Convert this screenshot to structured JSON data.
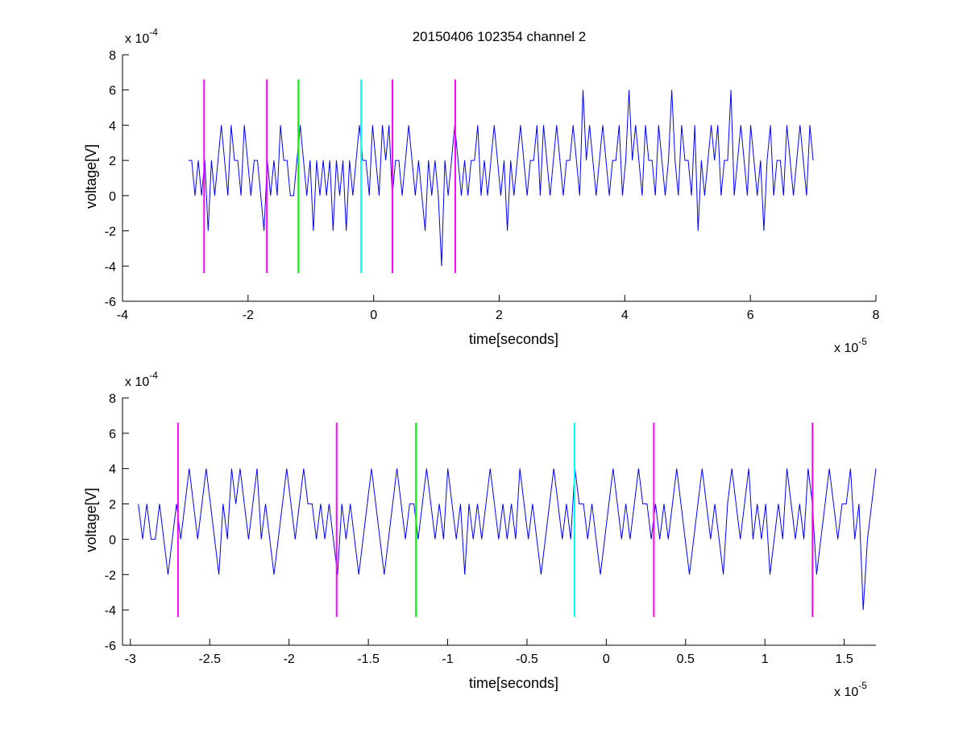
{
  "chart_data": [
    {
      "type": "line",
      "title": "20150406 102354 channel 2",
      "xlabel": "time[seconds]",
      "ylabel": "voltage[V]",
      "xlim": [
        -4,
        8
      ],
      "ylim": [
        -6,
        8
      ],
      "x_ticks": [
        -4,
        -2,
        0,
        2,
        4,
        6,
        8
      ],
      "y_ticks": [
        -6,
        -4,
        -2,
        0,
        2,
        4,
        6,
        8
      ],
      "x_exponent": "x 10",
      "x_exponent_power": "-5",
      "y_exponent": "x 10",
      "y_exponent_power": "-4",
      "signal": {
        "color": "#0000ff",
        "x_range": [
          -2.95,
          7.0
        ],
        "values": [
          2,
          2,
          0,
          2,
          0,
          2,
          -2,
          2,
          0,
          2,
          4,
          2,
          0,
          4,
          2,
          2,
          0,
          4,
          2,
          0,
          2,
          2,
          0,
          -2,
          2,
          0,
          2,
          0,
          4,
          2,
          2,
          0,
          0,
          2,
          4,
          2,
          0,
          2,
          -2,
          2,
          0,
          2,
          0,
          2,
          -2,
          2,
          0,
          2,
          -2,
          2,
          0,
          2,
          4,
          2,
          2,
          0,
          4,
          2,
          0,
          4,
          2,
          4,
          0,
          2,
          2,
          0,
          2,
          4,
          2,
          0,
          2,
          0,
          -2,
          2,
          0,
          2,
          0,
          -4,
          2,
          0,
          2,
          4,
          2,
          0,
          2,
          0,
          2,
          2,
          4,
          0,
          2,
          0,
          2,
          4,
          2,
          0,
          2,
          -2,
          2,
          0,
          2,
          4,
          2,
          0,
          2,
          2,
          4,
          0,
          4,
          2,
          0,
          2,
          4,
          2,
          0,
          2,
          2,
          4,
          2,
          0,
          6,
          2,
          4,
          2,
          0,
          2,
          4,
          2,
          0,
          2,
          2,
          4,
          0,
          2,
          6,
          2,
          4,
          2,
          0,
          4,
          2,
          2,
          0,
          4,
          2,
          0,
          2,
          6,
          2,
          0,
          4,
          2,
          2,
          0,
          4,
          -2,
          2,
          0,
          2,
          4,
          2,
          4,
          0,
          2,
          2,
          6,
          0,
          2,
          4,
          2,
          0,
          4,
          2,
          0,
          2,
          -2,
          2,
          4,
          0,
          2,
          2,
          0,
          4,
          2,
          0,
          2,
          4,
          2,
          0,
          4,
          2
        ]
      },
      "markers": [
        {
          "x": -2.7,
          "color": "#ff00ff",
          "ymin": -4.4,
          "ymax": 6.6
        },
        {
          "x": -1.7,
          "color": "#ff00ff",
          "ymin": -4.4,
          "ymax": 6.6
        },
        {
          "x": -1.2,
          "color": "#00ff00",
          "ymin": -4.4,
          "ymax": 6.6
        },
        {
          "x": -0.2,
          "color": "#00ffff",
          "ymin": -4.4,
          "ymax": 6.6
        },
        {
          "x": 0.3,
          "color": "#ff00ff",
          "ymin": -4.4,
          "ymax": 6.6
        },
        {
          "x": 1.3,
          "color": "#ff00ff",
          "ymin": -4.4,
          "ymax": 6.6
        }
      ]
    },
    {
      "type": "line",
      "title": "",
      "xlabel": "time[seconds]",
      "ylabel": "voltage[V]",
      "xlim": [
        -3.05,
        1.7
      ],
      "ylim": [
        -6,
        8
      ],
      "x_ticks": [
        -3,
        -2.5,
        -2,
        -1.5,
        -1,
        -0.5,
        0,
        0.5,
        1,
        1.5
      ],
      "y_ticks": [
        -6,
        -4,
        -2,
        0,
        2,
        4,
        6,
        8
      ],
      "x_exponent": "x 10",
      "x_exponent_power": "-5",
      "y_exponent": "x 10",
      "y_exponent_power": "-4",
      "signal": {
        "color": "#0000ff",
        "x_range": [
          -2.95,
          1.7
        ],
        "values": [
          2,
          0,
          2,
          0,
          0,
          2,
          0,
          -2,
          0,
          2,
          0,
          2,
          4,
          2,
          0,
          2,
          4,
          2,
          0,
          -2,
          2,
          0,
          4,
          2,
          4,
          2,
          0,
          2,
          4,
          0,
          2,
          0,
          -2,
          0,
          2,
          4,
          2,
          0,
          2,
          4,
          2,
          2,
          0,
          2,
          0,
          2,
          0,
          -2,
          2,
          0,
          2,
          0,
          -2,
          0,
          2,
          4,
          2,
          0,
          -2,
          0,
          2,
          4,
          2,
          0,
          2,
          2,
          0,
          2,
          4,
          2,
          0,
          2,
          0,
          4,
          2,
          0,
          2,
          -2,
          2,
          0,
          2,
          0,
          2,
          4,
          2,
          0,
          2,
          0,
          2,
          0,
          4,
          2,
          0,
          2,
          0,
          -2,
          0,
          2,
          4,
          2,
          0,
          2,
          0,
          4,
          2,
          2,
          0,
          2,
          0,
          -2,
          0,
          2,
          4,
          2,
          0,
          2,
          0,
          2,
          4,
          2,
          2,
          0,
          2,
          0,
          2,
          0,
          2,
          4,
          2,
          0,
          -2,
          0,
          2,
          4,
          2,
          0,
          2,
          0,
          -2,
          2,
          4,
          2,
          0,
          2,
          4,
          0,
          2,
          0,
          2,
          -2,
          0,
          2,
          0,
          4,
          2,
          0,
          2,
          0,
          4,
          2,
          -2,
          0,
          2,
          4,
          2,
          0,
          2,
          2,
          4,
          0,
          2,
          -4,
          0,
          2,
          4
        ]
      },
      "markers": [
        {
          "x": -2.7,
          "color": "#ff00ff",
          "ymin": -4.4,
          "ymax": 6.6
        },
        {
          "x": -1.7,
          "color": "#ff00ff",
          "ymin": -4.4,
          "ymax": 6.6
        },
        {
          "x": -1.2,
          "color": "#00ff00",
          "ymin": -4.4,
          "ymax": 6.6
        },
        {
          "x": -0.2,
          "color": "#00ffff",
          "ymin": -4.4,
          "ymax": 6.6
        },
        {
          "x": 0.3,
          "color": "#ff00ff",
          "ymin": -4.4,
          "ymax": 6.6
        },
        {
          "x": 1.3,
          "color": "#ff00ff",
          "ymin": -4.4,
          "ymax": 6.6
        }
      ]
    }
  ]
}
